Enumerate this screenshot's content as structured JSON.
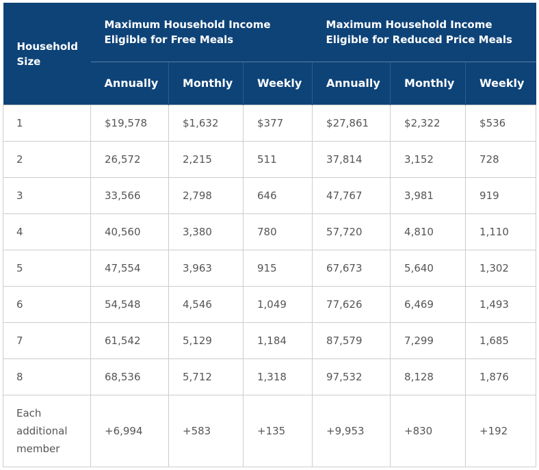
{
  "table": {
    "household_size_header": "Household Size",
    "free_meals_header": "Maximum Household Income Eligible for Free Meals",
    "reduced_meals_header": "Maximum Household Income Eligible for Reduced Price Meals",
    "sub_headers": [
      "Annually",
      "Monthly",
      "Weekly",
      "Annually",
      "Monthly",
      "Weekly"
    ],
    "rows": [
      [
        "1",
        "$19,578",
        "$1,632",
        "$377",
        "$27,861",
        "$2,322",
        "$536"
      ],
      [
        "2",
        "26,572",
        "2,215",
        "511",
        "37,814",
        "3,152",
        "728"
      ],
      [
        "3",
        "33,566",
        "2,798",
        "646",
        "47,767",
        "3,981",
        "919"
      ],
      [
        "4",
        "40,560",
        "3,380",
        "780",
        "57,720",
        "4,810",
        "1,110"
      ],
      [
        "5",
        "47,554",
        "3,963",
        "915",
        "67,673",
        "5,640",
        "1,302"
      ],
      [
        "6",
        "54,548",
        "4,546",
        "1,049",
        "77,626",
        "6,469",
        "1,493"
      ],
      [
        "7",
        "61,542",
        "5,129",
        "1,184",
        "87,579",
        "7,299",
        "1,685"
      ],
      [
        "8",
        "68,536",
        "5,712",
        "1,318",
        "97,532",
        "8,128",
        "1,876"
      ],
      [
        "Each additional member",
        "+6,994",
        "+583",
        "+135",
        "+9,953",
        "+830",
        "+192"
      ]
    ]
  },
  "colors": {
    "header_bg": "#0e4378",
    "header_text": "#ffffff",
    "cell_text": "#555555",
    "border": "#cccccc"
  }
}
